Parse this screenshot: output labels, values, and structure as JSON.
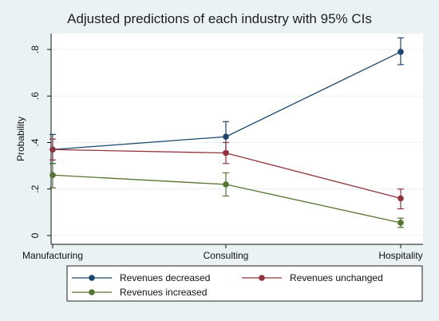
{
  "chart_data": {
    "type": "line",
    "title": "Adjusted predictions of each industry with 95% CIs",
    "xlabel": "",
    "ylabel": "Probability",
    "categories": [
      "Manufacturing",
      "Consulting",
      "Hospitality"
    ],
    "ylim": [
      0,
      0.85
    ],
    "yticks": [
      0,
      0.2,
      0.4,
      0.6,
      0.8
    ],
    "ytick_labels": [
      "0",
      ".2",
      ".4",
      ".6",
      ".8"
    ],
    "grid": true,
    "legend_position": "bottom",
    "series": [
      {
        "name": "Revenues decreased",
        "color": "#1a476f",
        "values": [
          0.37,
          0.425,
          0.79
        ],
        "ci_lower": [
          0.31,
          0.36,
          0.735
        ],
        "ci_upper": [
          0.435,
          0.49,
          0.85
        ]
      },
      {
        "name": "Revenues unchanged",
        "color": "#90353b",
        "values": [
          0.37,
          0.355,
          0.16
        ],
        "ci_lower": [
          0.325,
          0.31,
          0.115
        ],
        "ci_upper": [
          0.415,
          0.4,
          0.2
        ]
      },
      {
        "name": "Revenues increased",
        "color": "#55752f",
        "values": [
          0.26,
          0.22,
          0.055
        ],
        "ci_lower": [
          0.205,
          0.17,
          0.035
        ],
        "ci_upper": [
          0.31,
          0.27,
          0.075
        ]
      }
    ]
  }
}
